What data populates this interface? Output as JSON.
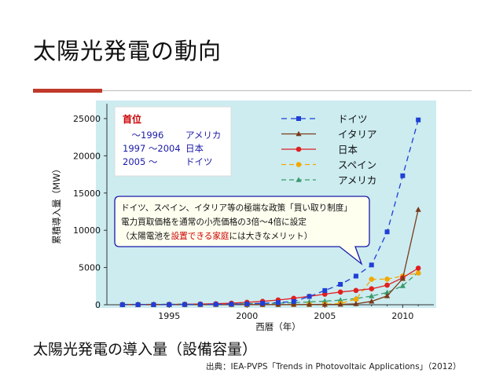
{
  "slide": {
    "title": "太陽光発電の動向",
    "caption": "太陽光発電の導入量（設備容量）",
    "source": "出典：IEA-PVPS「Trends in Photovoltaic Applications」（2012）"
  },
  "colors": {
    "plot_bg": "#ccecf0",
    "accent_red": "#c0392b",
    "ranking_heading": "#cc0000",
    "ranking_text": "#1a1aa8",
    "callout_border": "#1a1aa8",
    "callout_bg": "#fffff0"
  },
  "ranking_box": {
    "heading": "首位",
    "rows": [
      {
        "period": "　～1996",
        "country": "アメリカ"
      },
      {
        "period": "1997 ～2004",
        "country": "日本"
      },
      {
        "period": "2005 ～",
        "country": "ドイツ"
      }
    ]
  },
  "callout": {
    "line1": "ドイツ、スペイン、イタリア等の極端な政策「買い取り制度」",
    "line2": "電力買取価格を通常の小売価格の3倍～4倍に設定",
    "line3_pre": "（太陽電池を",
    "line3_red": "設置できる家庭",
    "line3_mid": "には",
    "line3_post": "大きなメリット）"
  },
  "chart_data": {
    "type": "line",
    "xlabel": "西暦（年）",
    "ylabel": "累積導入量（MW）",
    "xlim": [
      1991,
      2012
    ],
    "ylim": [
      0,
      27000
    ],
    "xticks": [
      1995,
      2000,
      2005,
      2010
    ],
    "yticks": [
      0,
      5000,
      10000,
      15000,
      20000,
      25000
    ],
    "legend_position": "top-right",
    "x": [
      1992,
      1993,
      1994,
      1995,
      1996,
      1997,
      1998,
      1999,
      2000,
      2001,
      2002,
      2003,
      2004,
      2005,
      2006,
      2007,
      2008,
      2009,
      2010,
      2011
    ],
    "series": [
      {
        "name": "ドイツ",
        "color": "#1f3fd6",
        "marker": "square",
        "dash": "7,5",
        "values": [
          6,
          9,
          12,
          18,
          28,
          42,
          54,
          70,
          114,
          195,
          296,
          435,
          1105,
          1910,
          2743,
          3846,
          5340,
          9785,
          17320,
          24820
        ]
      },
      {
        "name": "イタリア",
        "color": "#7a3a1a",
        "marker": "triangle",
        "dash": "",
        "values": [
          8,
          12,
          14,
          16,
          16,
          17,
          18,
          18,
          19,
          20,
          22,
          26,
          31,
          38,
          50,
          120,
          458,
          1181,
          3502,
          12773
        ]
      },
      {
        "name": "日本",
        "color": "#e02020",
        "marker": "circle",
        "dash": "",
        "values": [
          19,
          24,
          31,
          43,
          60,
          91,
          133,
          209,
          330,
          453,
          637,
          860,
          1132,
          1422,
          1708,
          1919,
          2144,
          2627,
          3618,
          4914
        ]
      },
      {
        "name": "スペイン",
        "color": "#f2a800",
        "marker": "circle",
        "dash": "6,4",
        "values": [
          4,
          5,
          6,
          6,
          7,
          8,
          9,
          10,
          12,
          16,
          20,
          27,
          37,
          57,
          175,
          734,
          3421,
          3438,
          3859,
          4260
        ]
      },
      {
        "name": "アメリカ",
        "color": "#3a9a6a",
        "marker": "triangle",
        "dash": "6,4",
        "values": [
          44,
          51,
          58,
          67,
          77,
          88,
          100,
          117,
          139,
          168,
          212,
          275,
          376,
          479,
          624,
          831,
          1169,
          1642,
          2534,
          4383
        ]
      }
    ]
  }
}
